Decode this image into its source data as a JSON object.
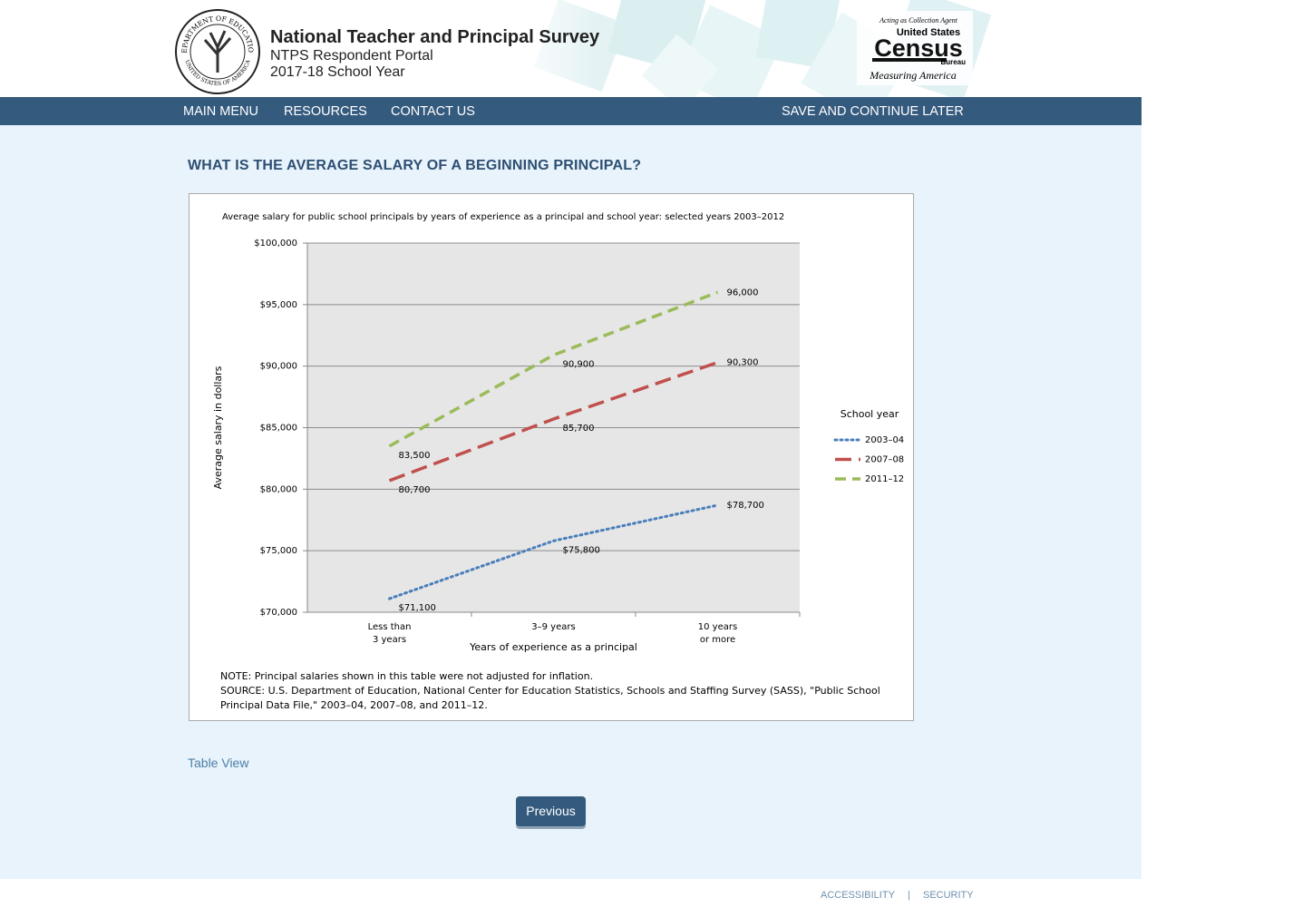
{
  "header": {
    "title": "National Teacher and Principal Survey",
    "subtitle": "NTPS Respondent Portal",
    "year": "2017-18 School Year",
    "seal_top": "DEPARTMENT OF EDUCATION",
    "seal_bottom": "UNITED STATES OF AMERICA",
    "census_agent": "Acting as Collection Agent",
    "census_us": "United States",
    "census_name": "Census",
    "census_bureau": "Bureau",
    "census_tagline": "Measuring America"
  },
  "nav": {
    "items": [
      "MAIN MENU",
      "RESOURCES",
      "CONTACT US"
    ],
    "save_later": "SAVE AND CONTINUE LATER"
  },
  "question": "WHAT IS THE AVERAGE SALARY OF A BEGINNING PRINCIPAL?",
  "chart_data": {
    "type": "line",
    "title": "Average salary for public school principals by years of experience as a principal and school year: selected years 2003–2012",
    "x_label": "Years of experience as a principal",
    "y_label": "Average salary in dollars",
    "categories": [
      "Less than\n3 years",
      "3–9 years",
      "10 years\nor more"
    ],
    "legend_title": "School year",
    "legend_position": "right",
    "grid": true,
    "ylim": [
      70000,
      100000
    ],
    "yticks": [
      {
        "value": 70000,
        "label": "$70,000"
      },
      {
        "value": 75000,
        "label": "$75,000"
      },
      {
        "value": 80000,
        "label": "$80,000"
      },
      {
        "value": 85000,
        "label": "$85,000"
      },
      {
        "value": 90000,
        "label": "$90,000"
      },
      {
        "value": 95000,
        "label": "$95,000"
      },
      {
        "value": 100000,
        "label": "$100,000"
      }
    ],
    "series": [
      {
        "name": "2003–04",
        "color": "#4a7ebb",
        "dash": "dotted",
        "values": [
          71100,
          75800,
          78700
        ],
        "value_labels": [
          "$71,100",
          "$75,800",
          "$78,700"
        ]
      },
      {
        "name": "2007–08",
        "color": "#c0504d",
        "dash": "long-dash",
        "values": [
          80700,
          85700,
          90300
        ],
        "value_labels": [
          "80,700",
          "85,700",
          "90,300"
        ]
      },
      {
        "name": "2011–12",
        "color": "#9bbb59",
        "dash": "dash",
        "values": [
          83500,
          90900,
          96000
        ],
        "value_labels": [
          "83,500",
          "90,900",
          "96,000"
        ]
      }
    ],
    "note": "NOTE: Principal salaries shown in this table were not adjusted for inflation.",
    "source": "SOURCE: U.S. Department of Education, National Center for Education Statistics, Schools and Staffing Survey (SASS), \"Public School Principal Data File,\" 2003–04, 2007–08, and 2011–12."
  },
  "links": {
    "table_view": "Table View",
    "previous": "Previous"
  },
  "footer": {
    "accessibility": "ACCESSIBILITY",
    "separator": "|",
    "security": "SECURITY"
  }
}
